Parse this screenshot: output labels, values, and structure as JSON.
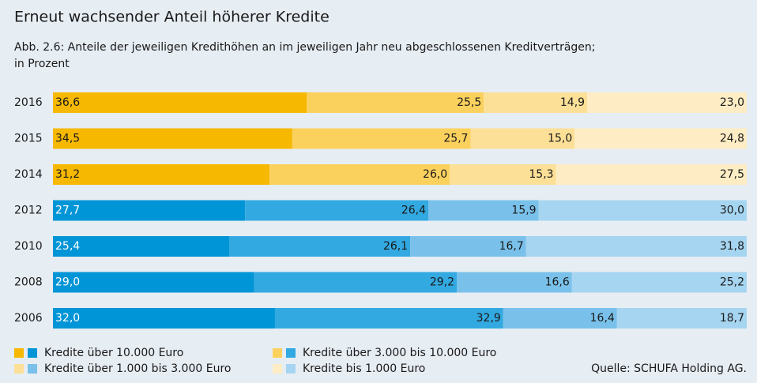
{
  "chart_data": {
    "type": "stacked-bar-horizontal",
    "title": "Erneut wachsender Anteil höherer Kredite",
    "subtitle": [
      "Abb. 2.6: Anteile der jeweiligen Kredithöhen an im jeweiligen Jahr neu abgeschlossenen Kreditverträgen;",
      "in Prozent"
    ],
    "source": "Quelle: SCHUFA Holding AG.",
    "categories": [
      "2016",
      "2015",
      "2014",
      "2012",
      "2010",
      "2008",
      "2006"
    ],
    "xlim": [
      0,
      100
    ],
    "series": [
      {
        "name": "Kredite über 10.000 Euro",
        "colors": [
          "#f6b800",
          "#f6b800",
          "#f6b800",
          "#0095d6",
          "#0095d6",
          "#0095d6",
          "#0095d6"
        ],
        "values": [
          36.6,
          34.5,
          31.2,
          27.7,
          25.4,
          29.0,
          32.0
        ],
        "value_labels": [
          "36,6",
          "34,5",
          "31,2",
          "27,7",
          "25,4",
          "29,0",
          "32,0"
        ]
      },
      {
        "name": "Kredite über 3.000 bis 10.000 Euro",
        "colors": [
          "#fbd15e",
          "#fbd15e",
          "#fbd15e",
          "#33a9e1",
          "#33a9e1",
          "#33a9e1",
          "#33a9e1"
        ],
        "values": [
          25.5,
          25.7,
          26.0,
          26.4,
          26.1,
          29.2,
          32.9
        ],
        "value_labels": [
          "25,5",
          "25,7",
          "26,0",
          "26,4",
          "26,1",
          "29,2",
          "32,9"
        ]
      },
      {
        "name": "Kredite über 1.000 bis 3.000 Euro",
        "colors": [
          "#fde097",
          "#fde097",
          "#fde097",
          "#79c1ea",
          "#79c1ea",
          "#79c1ea",
          "#79c1ea"
        ],
        "values": [
          14.9,
          15.0,
          15.3,
          15.9,
          16.7,
          16.6,
          16.4
        ],
        "value_labels": [
          "14,9",
          "15,0",
          "15,3",
          "15,9",
          "16,7",
          "16,6",
          "16,4"
        ]
      },
      {
        "name": "Kredite bis 1.000 Euro",
        "colors": [
          "#feedc4",
          "#feedc4",
          "#feedc4",
          "#a6d5f1",
          "#a6d5f1",
          "#a6d5f1",
          "#a6d5f1"
        ],
        "values": [
          23.0,
          24.8,
          27.5,
          30.0,
          31.8,
          25.2,
          18.7
        ],
        "value_labels": [
          "23,0",
          "24,8",
          "27,5",
          "30,0",
          "31,8",
          "25,2",
          "18,7"
        ]
      }
    ]
  }
}
